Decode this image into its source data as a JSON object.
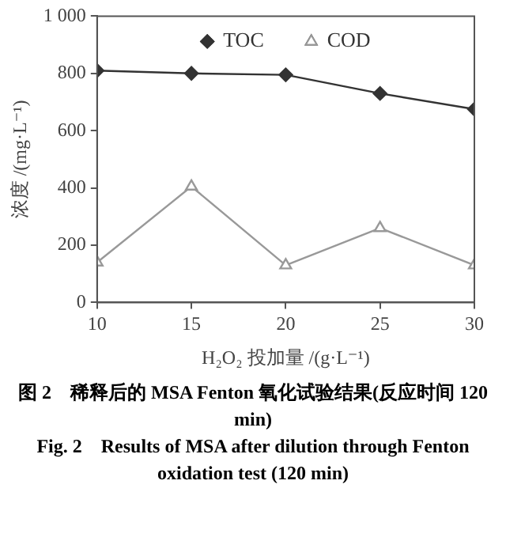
{
  "chart_data": {
    "type": "line",
    "title": "图 2　稀释后的 MSA Fenton 氧化试验结果(反应时间 120 min)",
    "annotations": [
      "Fig. 2　Results of MSA after dilution through Fenton oxidation test (120 min)"
    ],
    "xlabel": "H₂O₂ 投加量 /(g·L⁻¹)",
    "ylabel": "浓度 /(mg·L⁻¹)",
    "x": [
      10,
      15,
      20,
      25,
      30
    ],
    "xlim": [
      10,
      30
    ],
    "xticks": [
      10,
      15,
      20,
      25,
      30
    ],
    "ylim": [
      0,
      1000
    ],
    "yticks": [
      0,
      200,
      400,
      600,
      800,
      {
        "value": 1000,
        "label": "1 000"
      }
    ],
    "series": [
      {
        "name": "TOC",
        "color": "#333333",
        "marker": "diamond",
        "values": [
          810,
          800,
          795,
          730,
          675
        ]
      },
      {
        "name": "COD",
        "color": "#999999",
        "marker": "triangle",
        "values": [
          140,
          405,
          130,
          260,
          130
        ]
      }
    ],
    "grid": false,
    "legend": "top",
    "line_style": "solid"
  }
}
